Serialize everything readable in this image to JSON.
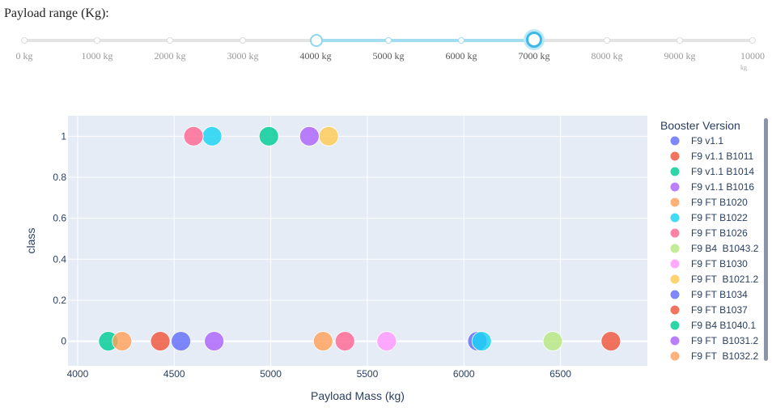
{
  "page": {
    "range_title": "Payload range (Kg):"
  },
  "slider": {
    "min": 0,
    "max": 10000,
    "value_low": 4000,
    "value_high": 7000,
    "marks": [
      "0 kg",
      "1000 kg",
      "2000 kg",
      "3000 kg",
      "4000 kg",
      "5000 kg",
      "6000 kg",
      "7000 kg",
      "8000 kg",
      "9000 kg",
      "10000 kg"
    ],
    "mark_values": [
      0,
      1000,
      2000,
      3000,
      4000,
      5000,
      6000,
      7000,
      8000,
      9000,
      10000
    ],
    "accent_color": "#3ab8e8"
  },
  "chart_data": {
    "type": "scatter",
    "xlabel": "Payload Mass (kg)",
    "ylabel": "class",
    "xlim": [
      3950,
      6950
    ],
    "ylim": [
      -0.12,
      1.1
    ],
    "x_ticks": [
      4000,
      4500,
      5000,
      5500,
      6000,
      6500
    ],
    "y_ticks": [
      0,
      0.2,
      0.4,
      0.6,
      0.8,
      1
    ],
    "y_tick_labels": [
      "0",
      "0.2",
      "0.4",
      "0.6",
      "0.8",
      "1"
    ],
    "grid": true,
    "legend_title": "Booster Version",
    "legend_position": "right",
    "series": [
      {
        "name": "F9 v1.1",
        "color": "#636efa",
        "points": [
          {
            "x": 4535,
            "y": 0
          }
        ]
      },
      {
        "name": "F9 v1.1 B1011",
        "color": "#ef553b",
        "points": [
          {
            "x": 4428,
            "y": 0
          }
        ]
      },
      {
        "name": "F9 v1.1 B1014",
        "color": "#00cc96",
        "points": [
          {
            "x": 4159,
            "y": 0
          }
        ]
      },
      {
        "name": "F9 v1.1 B1016",
        "color": "#ab63fa",
        "points": [
          {
            "x": 4707,
            "y": 0
          }
        ]
      },
      {
        "name": "F9 FT B1020",
        "color": "#ffa15a",
        "points": [
          {
            "x": 5271,
            "y": 0
          }
        ]
      },
      {
        "name": "F9 FT B1022",
        "color": "#19d3f3",
        "points": [
          {
            "x": 4696,
            "y": 1
          }
        ]
      },
      {
        "name": "F9 FT B1026",
        "color": "#ff6692",
        "points": [
          {
            "x": 4600,
            "y": 1
          },
          {
            "x": 5384,
            "y": 0
          }
        ]
      },
      {
        "name": "F9 B4  B1043.2",
        "color": "#b6e880",
        "points": [
          {
            "x": 6460,
            "y": 0
          }
        ]
      },
      {
        "name": "F9 FT B1030",
        "color": "#ff97ff",
        "points": [
          {
            "x": 5600,
            "y": 0
          }
        ]
      },
      {
        "name": "F9 FT  B1021.2",
        "color": "#fecb52",
        "points": [
          {
            "x": 5300,
            "y": 1
          }
        ]
      },
      {
        "name": "F9 FT B1034",
        "color": "#636efa",
        "points": [
          {
            "x": 6070,
            "y": 0
          }
        ]
      },
      {
        "name": "F9 FT B1037",
        "color": "#ef553b",
        "points": [
          {
            "x": 6761,
            "y": 0
          }
        ]
      },
      {
        "name": "F9 B4 B1040.1",
        "color": "#00cc96",
        "points": [
          {
            "x": 4990,
            "y": 1
          }
        ]
      },
      {
        "name": "F9 FT  B1031.2",
        "color": "#ab63fa",
        "points": [
          {
            "x": 5200,
            "y": 1
          }
        ]
      },
      {
        "name": "F9 FT  B1032.2",
        "color": "#ffa15a",
        "points": [
          {
            "x": 4230,
            "y": 0
          }
        ]
      },
      {
        "name": "",
        "color": "#19d3f3",
        "points": [
          {
            "x": 6092,
            "y": 0
          }
        ]
      }
    ]
  },
  "colors": {
    "plot_background": "#e5ecf6",
    "grid": "#ffffff",
    "scrollbar": "#8a96a8"
  }
}
